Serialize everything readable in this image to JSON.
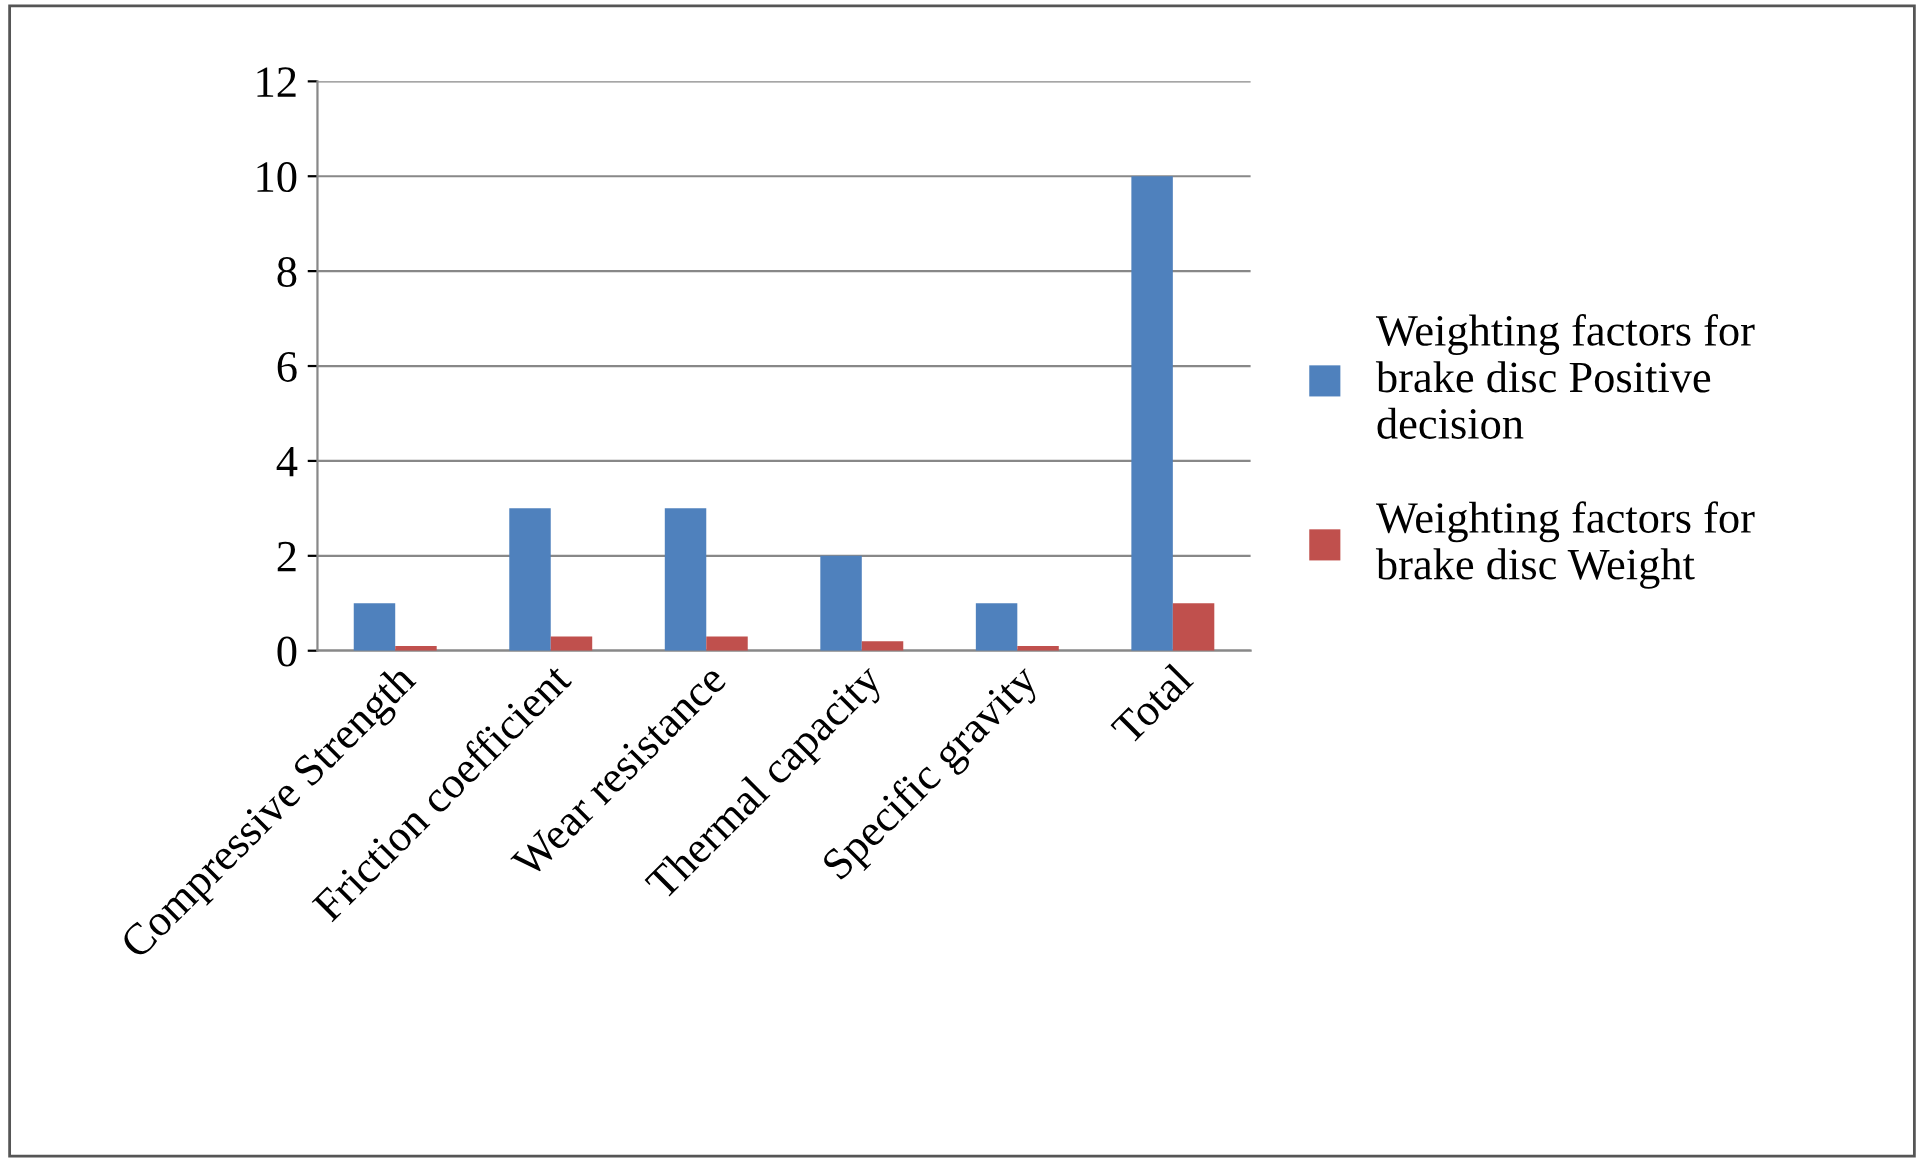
{
  "chart_data": {
    "type": "bar",
    "categories": [
      "Compressive Strength",
      "Friction coefficient",
      "Wear resistance",
      "Thermal capacity",
      "Specific gravity",
      "Total"
    ],
    "series": [
      {
        "name": "Weighting factors for brake disc Positive decision",
        "color": "#4f81bd",
        "values": [
          1,
          3,
          3,
          2,
          1,
          10
        ]
      },
      {
        "name": "Weighting factors for brake disc Weight",
        "color": "#c0504d",
        "values": [
          0.1,
          0.3,
          0.3,
          0.2,
          0.1,
          1
        ]
      }
    ],
    "ylim": [
      0,
      12
    ],
    "yticks": [
      0,
      2,
      4,
      6,
      8,
      10,
      12
    ],
    "grid": "y",
    "legend": "right"
  }
}
